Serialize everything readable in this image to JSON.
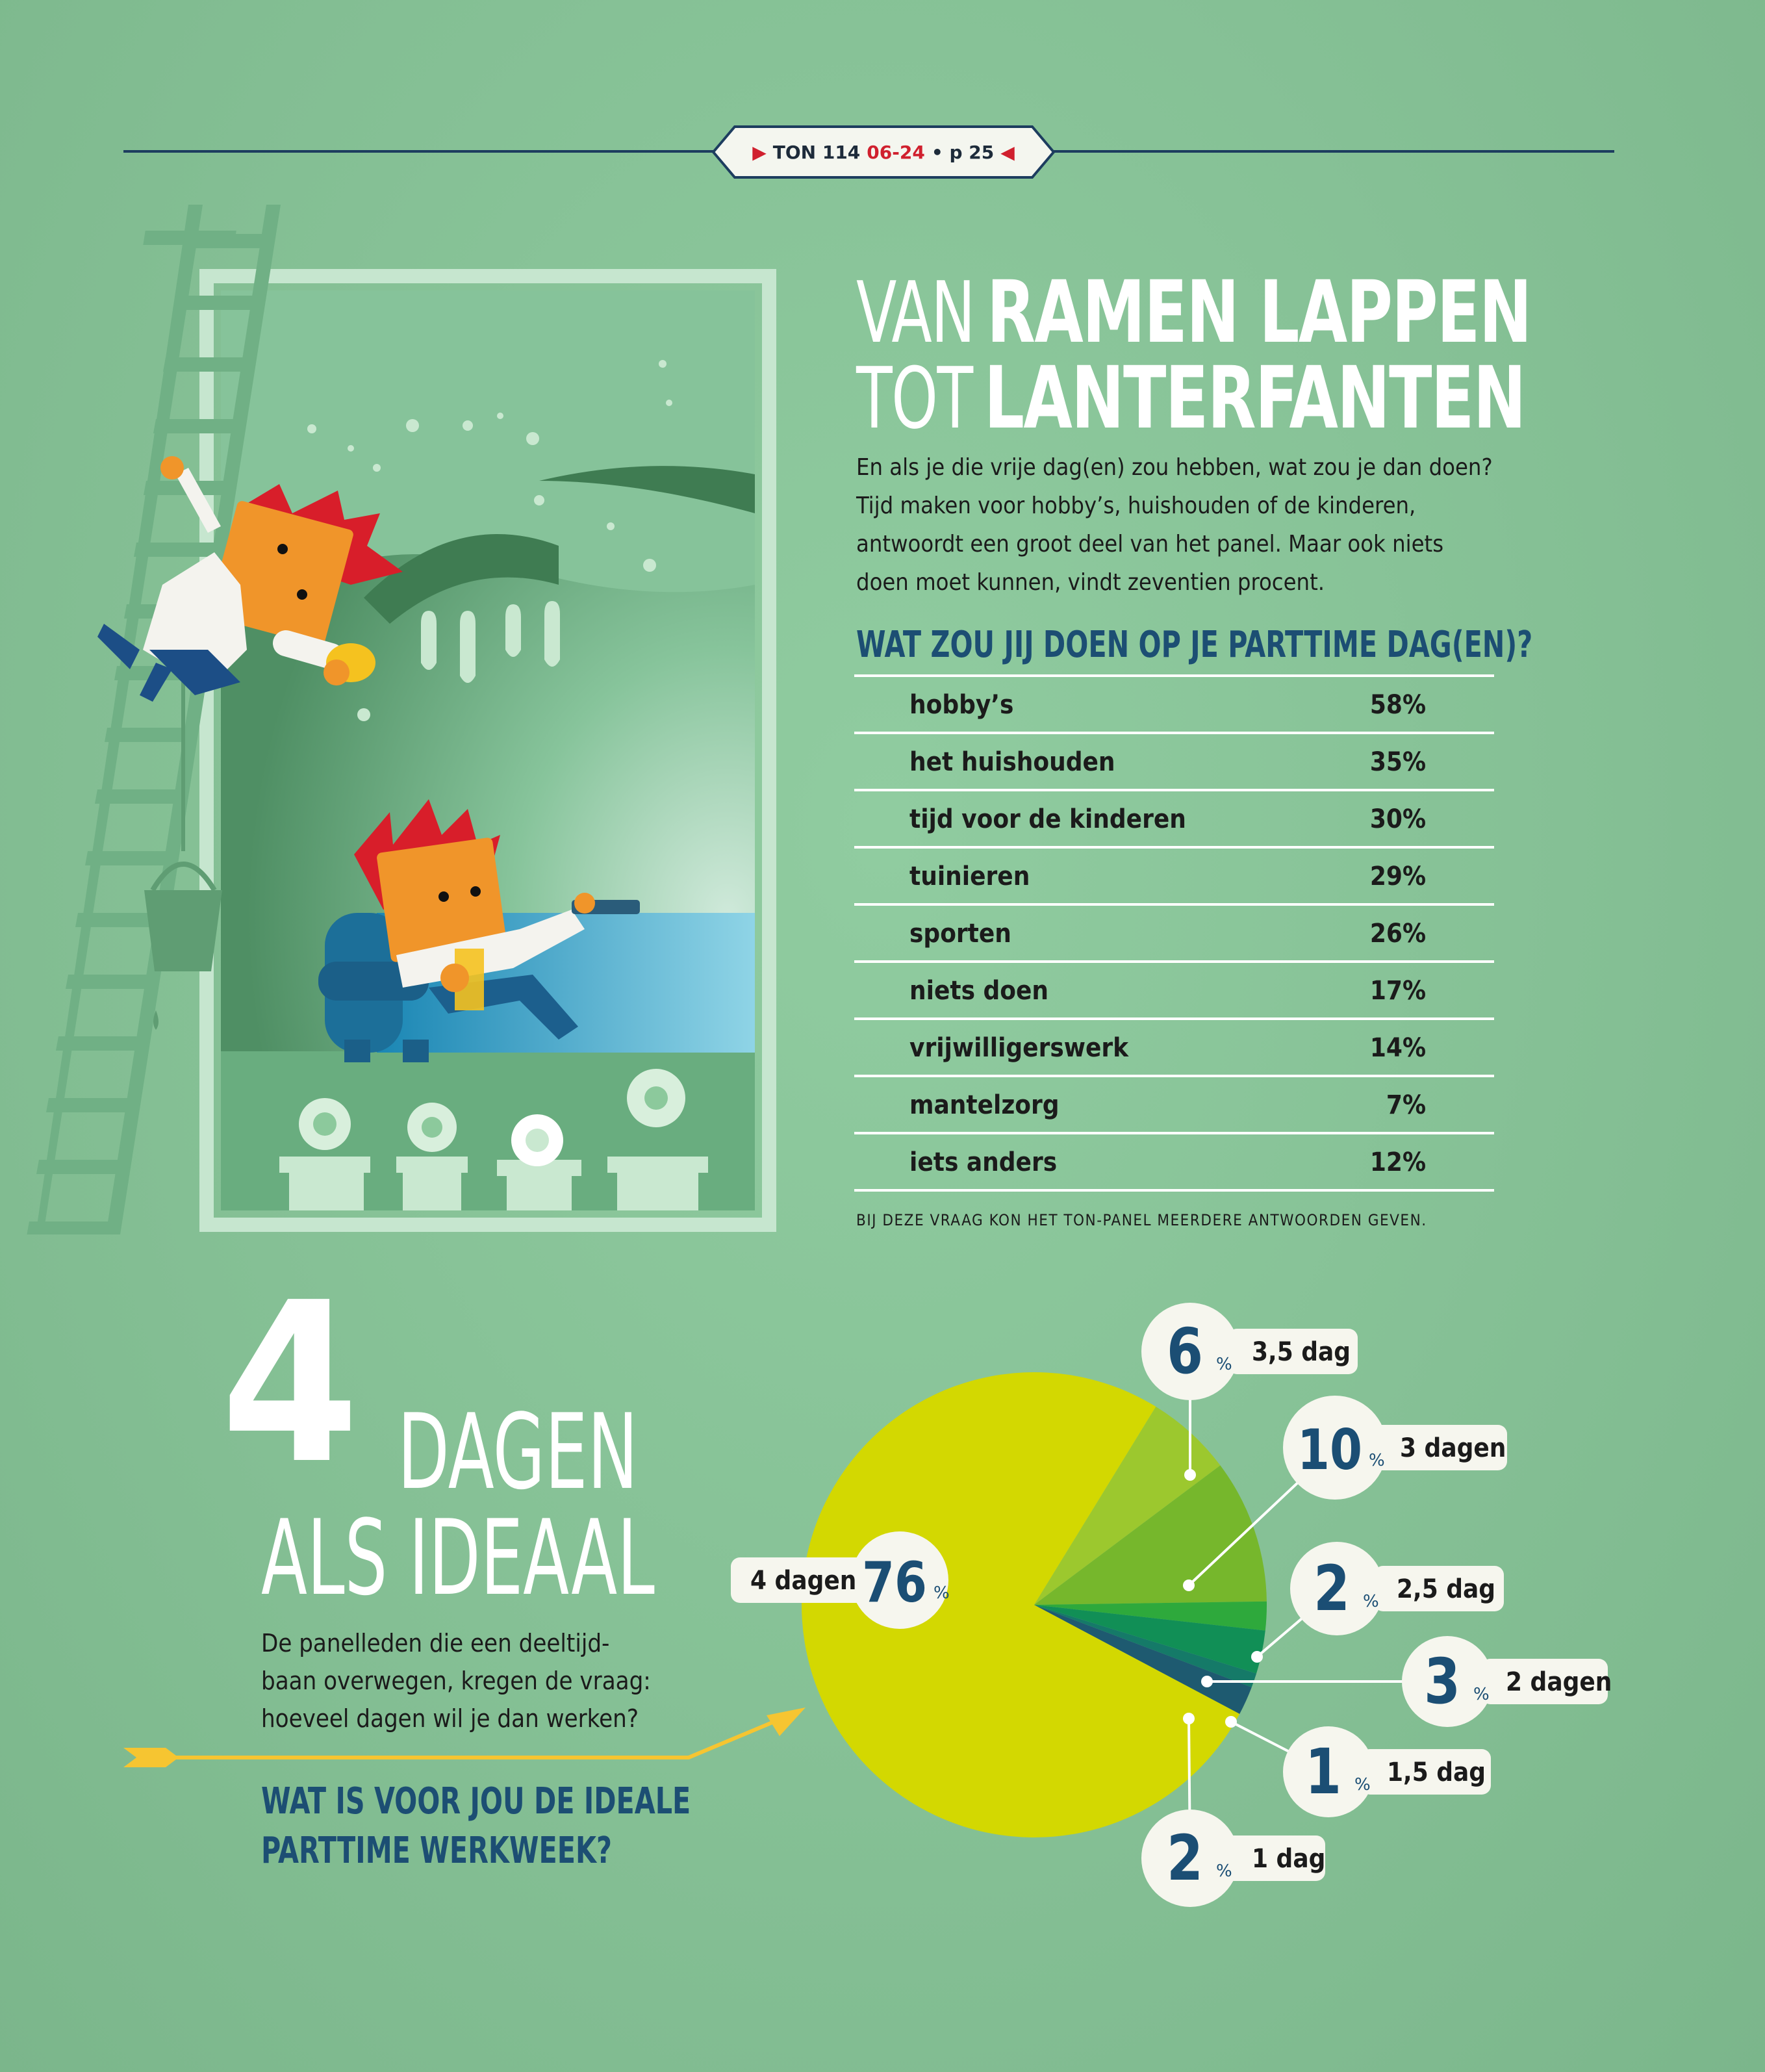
{
  "header": {
    "publication": "TON 114",
    "issue": "06-24",
    "page": "• p 25"
  },
  "title": {
    "line1_thin": "VAN",
    "line1_bold": "RAMEN LAPPEN",
    "line2_thin": "TOT",
    "line2_bold": "LANTERFANTEN"
  },
  "intro": "En als je die vrije dag(en) zou hebben, wat zou je dan doen? Tijd maken voor hobby’s, huishouden of de kinderen, antwoordt een groot deel van het panel. Maar ook niets doen moet kunnen, vindt zeventien procent.",
  "table_section": {
    "heading": "WAT ZOU JIJ DOEN OP JE PARTTIME DAG(EN)?",
    "note": "BIJ DEZE VRAAG KON HET TON-PANEL MEERDERE ANTWOORDEN GEVEN.",
    "rows": [
      {
        "label": "hobby’s",
        "value": "58%"
      },
      {
        "label": "het huishouden",
        "value": "35%"
      },
      {
        "label": "tijd voor de kinderen",
        "value": "30%"
      },
      {
        "label": "tuinieren",
        "value": "29%"
      },
      {
        "label": "sporten",
        "value": "26%"
      },
      {
        "label": "niets doen",
        "value": "17%"
      },
      {
        "label": "vrijwilligerswerk",
        "value": "14%"
      },
      {
        "label": "mantelzorg",
        "value": "7%"
      },
      {
        "label": "iets anders",
        "value": "12%"
      }
    ]
  },
  "pie_section": {
    "big_number": "4",
    "title_line1": "DAGEN",
    "title_line2": "ALS IDEAAL",
    "subtitle": "De panelleden die een deeltijd- baan overwegen, kregen de vraag: hoeveel dagen wil je dan werken?",
    "question_line1": "WAT IS VOOR JOU DE IDEALE",
    "question_line2": "PARTTIME WERKWEEK?"
  },
  "chart_data": {
    "type": "pie",
    "unit": "%",
    "slices": [
      {
        "label": "4 dagen",
        "value": 76,
        "color": "#d3d801"
      },
      {
        "label": "3,5 dag",
        "value": 6,
        "color": "#9cc82e"
      },
      {
        "label": "3 dagen",
        "value": 10,
        "color": "#76b72c"
      },
      {
        "label": "2,5 dag",
        "value": 2,
        "color": "#2ea93c"
      },
      {
        "label": "2 dagen",
        "value": 3,
        "color": "#118f56"
      },
      {
        "label": "1,5 dag",
        "value": 1,
        "color": "#157a68"
      },
      {
        "label": "1 dag",
        "value": 2,
        "color": "#1e5a70"
      }
    ],
    "callouts": [
      {
        "value": "76",
        "label": "4 dagen"
      },
      {
        "value": "6",
        "label": "3,5 dag"
      },
      {
        "value": "10",
        "label": "3 dagen"
      },
      {
        "value": "2",
        "label": "2,5 dag"
      },
      {
        "value": "3",
        "label": "2 dagen"
      },
      {
        "value": "1",
        "label": "1,5 dag"
      },
      {
        "value": "2",
        "label": "1 dag"
      }
    ],
    "percent_sign": "%"
  }
}
